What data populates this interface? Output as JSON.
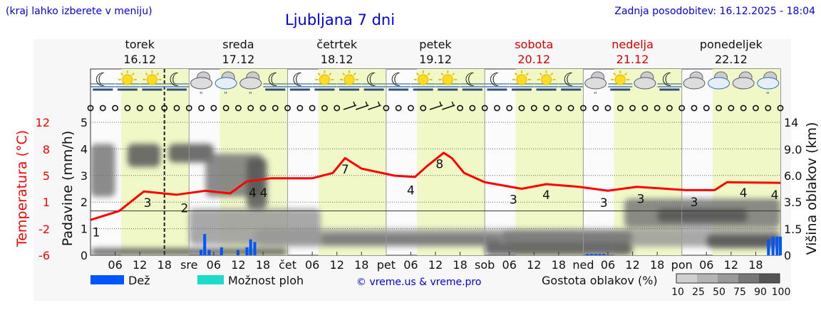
{
  "header": {
    "subtitle": "(kraj lahko izberete v meniju)",
    "title": "Ljubljana 7 dni",
    "updated": "Zadnja posodobitev: 16.12.2025 - 18:04"
  },
  "colors": {
    "temperature": "#ff0000",
    "rain": "#0055ff",
    "showers": "#1adcc8",
    "daylight": "#f0f8c8",
    "text_blue": "#0000ee",
    "weekend": "#dd0000"
  },
  "chart_data": {
    "type": "line",
    "days": [
      {
        "name": "torek",
        "date": "16.12",
        "abbr": "",
        "weekend": false
      },
      {
        "name": "sreda",
        "date": "17.12",
        "abbr": "sre",
        "weekend": false
      },
      {
        "name": "četrtek",
        "date": "18.12",
        "abbr": "čet",
        "weekend": false
      },
      {
        "name": "petek",
        "date": "19.12",
        "abbr": "pet",
        "weekend": false
      },
      {
        "name": "sobota",
        "date": "20.12",
        "abbr": "sob",
        "weekend": true
      },
      {
        "name": "nedelja",
        "date": "21.12",
        "abbr": "ned",
        "weekend": true
      },
      {
        "name": "ponedeljek",
        "date": "22.12",
        "abbr": "pon",
        "weekend": false
      }
    ],
    "hour_ticks": [
      "06",
      "12",
      "18"
    ],
    "current_time_hour": 18,
    "daylight_hours": [
      7.5,
      16.5
    ],
    "temperature_axis": {
      "label": "Temperatura (°C)",
      "ticks": [
        -6,
        -2,
        1,
        5,
        8,
        12
      ]
    },
    "precip_axis": {
      "label": "Padavine (mm/h)",
      "ticks": [
        0,
        1,
        2,
        3,
        4,
        5
      ],
      "ylim": [
        0,
        5
      ]
    },
    "cloud_axis": {
      "label": "Višina oblakov (km)",
      "ticks": [
        "0",
        "1.5",
        "3.5",
        "6.0",
        "9.0",
        "14"
      ]
    },
    "temperature": [
      [
        0,
        -1.0
      ],
      [
        7,
        0.0
      ],
      [
        13,
        2.6
      ],
      [
        21,
        2.1
      ],
      [
        28,
        2.7
      ],
      [
        34,
        2.3
      ],
      [
        38,
        4.1
      ],
      [
        44,
        4.6
      ],
      [
        54,
        4.6
      ],
      [
        59,
        5.3
      ],
      [
        62,
        7.0
      ],
      [
        66,
        5.8
      ],
      [
        74,
        5.0
      ],
      [
        79,
        4.8
      ],
      [
        82,
        6.1
      ],
      [
        86,
        7.6
      ],
      [
        88,
        7.0
      ],
      [
        91,
        5.3
      ],
      [
        96,
        4.0
      ],
      [
        105,
        3.0
      ],
      [
        111,
        3.7
      ],
      [
        119,
        3.3
      ],
      [
        126,
        2.7
      ],
      [
        133,
        3.3
      ],
      [
        145,
        2.8
      ],
      [
        152,
        2.8
      ],
      [
        155,
        4.0
      ],
      [
        168,
        3.9
      ]
    ],
    "labels": [
      {
        "h": 1.4,
        "t": -2.4,
        "text": "1"
      },
      {
        "h": 13.9,
        "t": 1.0,
        "text": "3"
      },
      {
        "h": 22.9,
        "t": 0.4,
        "text": "2"
      },
      {
        "h": 39.5,
        "t": 2.5,
        "text": "4"
      },
      {
        "h": 40.8,
        "t": 2.5,
        "text": "4"
      },
      {
        "h": 62,
        "t": 5.8,
        "text": "7"
      },
      {
        "h": 78,
        "t": 2.9,
        "text": "4"
      },
      {
        "h": 85,
        "t": 6.4,
        "text": "8"
      },
      {
        "h": 103,
        "t": 1.5,
        "text": "3"
      },
      {
        "h": 111,
        "t": 2.2,
        "text": "4"
      },
      {
        "h": 125,
        "t": 1.0,
        "text": "3"
      },
      {
        "h": 134,
        "t": 1.6,
        "text": "3"
      },
      {
        "h": 147,
        "t": 1.1,
        "text": "3"
      },
      {
        "h": 159,
        "t": 2.5,
        "text": "4"
      },
      {
        "h": 168,
        "t": 2.2,
        "text": "4"
      }
    ],
    "rain": [
      [
        26.9,
        0.2
      ],
      [
        27.8,
        0.8
      ],
      [
        28.9,
        0.2
      ],
      [
        31.9,
        0.3
      ],
      [
        35.9,
        0.2
      ],
      [
        38.1,
        0.3
      ],
      [
        39,
        0.6
      ],
      [
        40,
        0.5
      ],
      [
        121,
        0.05
      ],
      [
        122,
        0.05
      ],
      [
        123,
        0.05
      ],
      [
        124,
        0.05
      ],
      [
        125,
        0.05
      ],
      [
        165.1,
        0.6
      ],
      [
        166.2,
        0.7
      ],
      [
        167.2,
        0.7
      ],
      [
        168,
        0.7
      ]
    ],
    "clouds": [
      {
        "h": [
          0,
          48
        ],
        "km": [
          0,
          0.4
        ],
        "density": 90
      },
      {
        "h": [
          0,
          6
        ],
        "km": [
          4,
          10
        ],
        "density": 75
      },
      {
        "h": [
          9,
          17
        ],
        "km": [
          7,
          10
        ],
        "density": 90
      },
      {
        "h": [
          19,
          30
        ],
        "km": [
          7.5,
          10
        ],
        "density": 90
      },
      {
        "h": [
          28,
          42
        ],
        "km": [
          4,
          8.5
        ],
        "density": 75
      },
      {
        "h": [
          38,
          43
        ],
        "km": [
          3,
          8
        ],
        "density": 90
      },
      {
        "h": [
          24,
          56
        ],
        "km": [
          0.6,
          3
        ],
        "density": 50
      },
      {
        "h": [
          40,
          168
        ],
        "km": [
          0.5,
          1.5
        ],
        "density": 50
      },
      {
        "h": [
          56,
          100
        ],
        "km": [
          0.6,
          1.2
        ],
        "density": 75
      },
      {
        "h": [
          96,
          132
        ],
        "km": [
          0,
          0.7
        ],
        "density": 90
      },
      {
        "h": [
          100,
          132
        ],
        "km": [
          0.7,
          1.4
        ],
        "density": 75
      },
      {
        "h": [
          130,
          168
        ],
        "km": [
          1.6,
          3.8
        ],
        "density": 75
      },
      {
        "h": [
          138,
          160
        ],
        "km": [
          2,
          3
        ],
        "density": 90
      },
      {
        "h": [
          150,
          168
        ],
        "km": [
          0.4,
          1.2
        ],
        "density": 90
      }
    ],
    "icons": [
      "moon-fog",
      "sun-fog",
      "sun-fog",
      "moon-fog",
      "cloud-rain",
      "cloud-rain",
      "cloud-rain",
      "moon-fog",
      "moon-fog",
      "sun-fog",
      "sun-fog",
      "moon-fog",
      "moon-fog",
      "sun-fog",
      "sun-fog",
      "moon-fog",
      "moon-fog",
      "sun-fog",
      "sun-fog",
      "moon-fog",
      "cloud-rain",
      "sun-fog",
      "cloud",
      "moon-fog",
      "cloud",
      "cloud",
      "cloud",
      "cloud-rain"
    ],
    "wind_barbs_hours": [
      63,
      66,
      69,
      84,
      87
    ]
  },
  "legend": {
    "rain": "Dež",
    "showers": "Možnost ploh",
    "copyright": "© vreme.us & vreme.pro",
    "cloud_density": "Gostota oblakov (%)",
    "density_ticks": [
      "10",
      "25",
      "50",
      "75",
      "90",
      "100"
    ]
  }
}
